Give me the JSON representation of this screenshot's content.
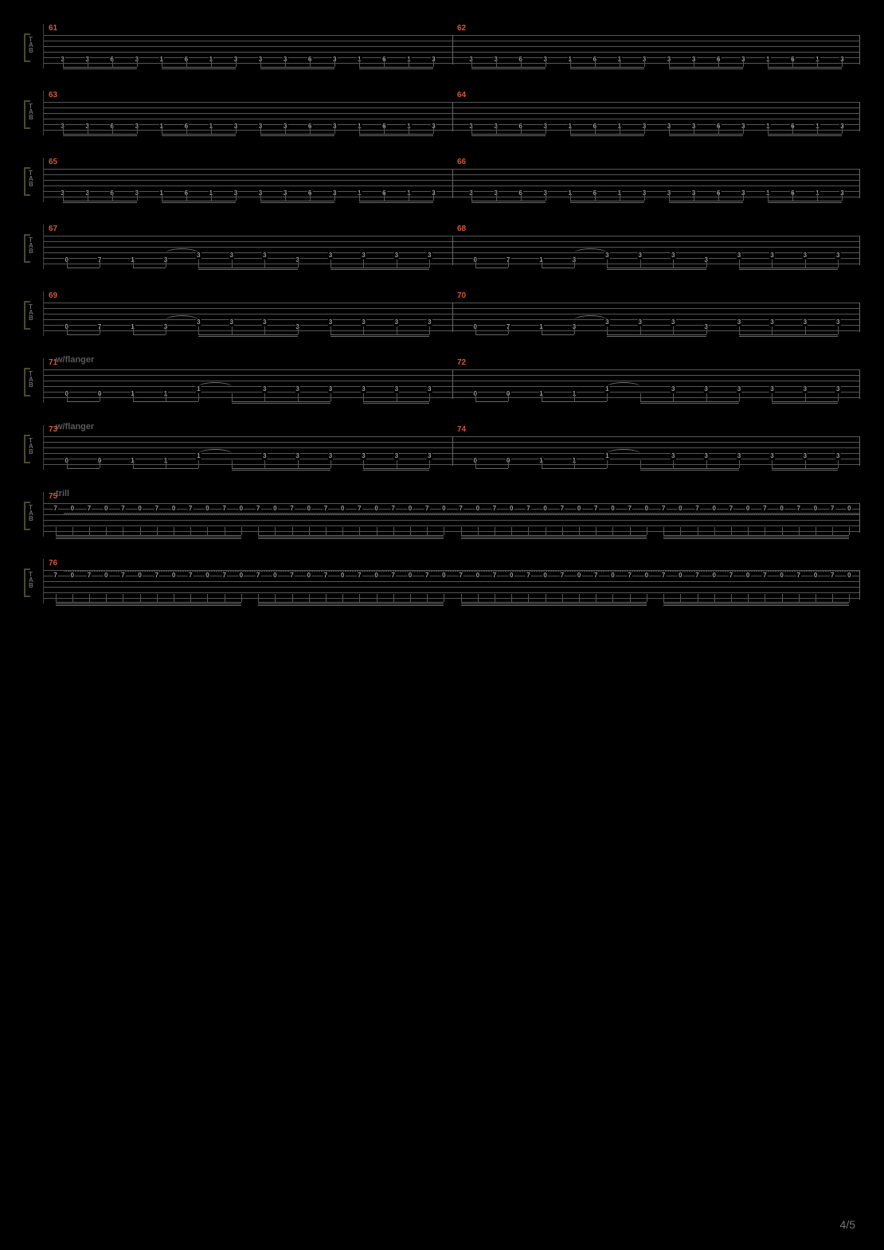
{
  "page_number": "4/5",
  "colors": {
    "background": "#000000",
    "measure_num": "#d0573b",
    "staff_line": "#555555",
    "note_text": "#999999",
    "annotation_text": "#595959",
    "bracket": "#4a4a2f"
  },
  "annotations": {
    "flanger": "w/flanger",
    "trill": "trill"
  },
  "riff_A": [
    "3",
    "3",
    "6",
    "3",
    "1",
    "6",
    "1",
    "3",
    "3",
    "3",
    "6",
    "3",
    "1",
    "6",
    "1",
    "3"
  ],
  "riff_B_top": [
    "",
    "",
    "",
    "",
    "3",
    "3",
    "3",
    "",
    "3",
    "3",
    "3",
    "3"
  ],
  "riff_B_bot": [
    "0",
    "7",
    "1",
    "3",
    "",
    "",
    "",
    "3",
    "",
    "",
    "",
    ""
  ],
  "riff_C_top": [
    "",
    "",
    "",
    "",
    "1",
    "",
    "3",
    "3",
    "3",
    "3",
    "3",
    "3"
  ],
  "riff_C_bot": [
    "0",
    "0",
    "1",
    "1",
    "",
    "",
    "",
    "",
    "",
    "",
    "",
    ""
  ],
  "trill_pair": [
    "7",
    "0"
  ],
  "staff_rows": [
    {
      "measures": [
        61,
        62
      ],
      "type": "A",
      "annotation": null
    },
    {
      "measures": [
        63,
        64
      ],
      "type": "A",
      "annotation": null
    },
    {
      "measures": [
        65,
        66
      ],
      "type": "A",
      "annotation": null
    },
    {
      "measures": [
        67,
        68
      ],
      "type": "B",
      "annotation": null
    },
    {
      "measures": [
        69,
        70
      ],
      "type": "B",
      "annotation": null
    },
    {
      "measures": [
        71,
        72
      ],
      "type": "C",
      "annotation": "flanger"
    },
    {
      "measures": [
        73,
        74
      ],
      "type": "C",
      "annotation": "flanger"
    },
    {
      "measures": [
        75
      ],
      "type": "T",
      "annotation": "trill"
    },
    {
      "measures": [
        76
      ],
      "type": "T",
      "annotation": null
    }
  ]
}
